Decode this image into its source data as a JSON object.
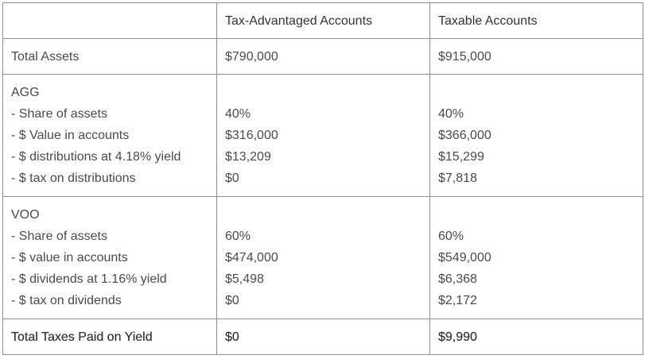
{
  "table": {
    "header": [
      "Tax-Advantaged Accounts",
      "Taxable Accounts"
    ],
    "rows": [
      [
        [
          "Total Assets"
        ],
        [
          "$790,000"
        ],
        [
          "$915,000"
        ]
      ],
      [
        [
          "AGG",
          "- Share of assets",
          "- $ Value in accounts",
          "- $ distributions at 4.18% yield",
          "- $ tax on distributions"
        ],
        [
          "40%",
          "$316,000",
          "$13,209",
          "$0"
        ],
        [
          "40%",
          "$366,000",
          "$15,299",
          "$7,818"
        ]
      ],
      [
        [
          "VOO",
          "- Share of assets",
          "- $ value in accounts",
          "- $ dividends at 1.16% yield",
          "- $ tax on dividends"
        ],
        [
          "60%",
          "$474,000",
          "$5,498",
          "$0"
        ],
        [
          "60%",
          "$549,000",
          "$6,368",
          "$2,172"
        ]
      ],
      [
        [
          "Total Taxes Paid on Yield"
        ],
        [
          "$0"
        ],
        [
          "$9,990"
        ]
      ]
    ]
  }
}
